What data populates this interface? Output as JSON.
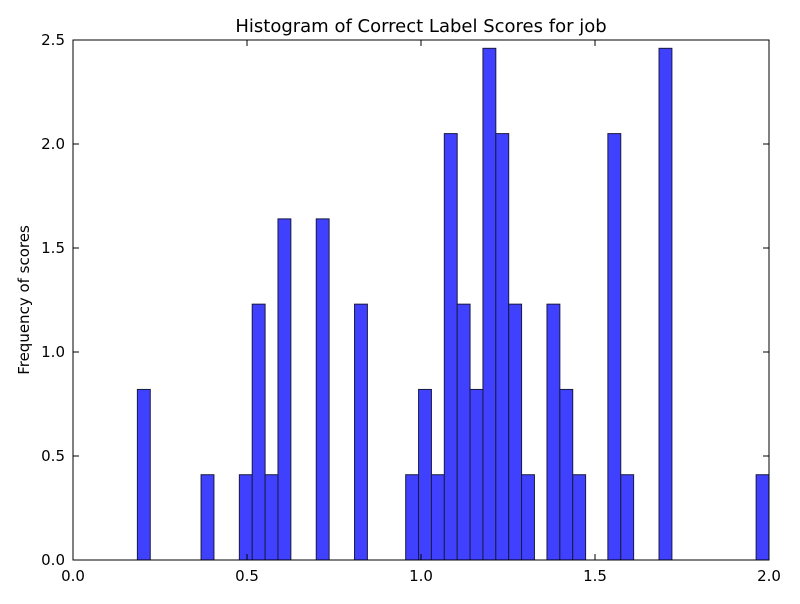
{
  "chart_data": {
    "type": "bar",
    "title": "Histogram of Correct Label Scores for job",
    "xlabel": "",
    "ylabel": "Frequency of scores",
    "xlim": [
      0.0,
      2.0
    ],
    "ylim": [
      0.0,
      2.5
    ],
    "grid": false,
    "bar_color": "#4040ff",
    "edge_color": "#1a1a40",
    "x_ticks": [
      {
        "value": 0.0,
        "label": "0.0"
      },
      {
        "value": 0.5,
        "label": "0.5"
      },
      {
        "value": 1.0,
        "label": "1.0"
      },
      {
        "value": 1.5,
        "label": "1.5"
      },
      {
        "value": 2.0,
        "label": "2.0"
      }
    ],
    "y_ticks": [
      {
        "value": 0.0,
        "label": "0.0"
      },
      {
        "value": 0.5,
        "label": "0.5"
      },
      {
        "value": 1.0,
        "label": "1.0"
      },
      {
        "value": 1.5,
        "label": "1.5"
      },
      {
        "value": 2.0,
        "label": "2.0"
      },
      {
        "value": 2.5,
        "label": "2.5"
      }
    ],
    "bins": [
      {
        "x0": 0.185,
        "x1": 0.222,
        "value": 0.82
      },
      {
        "x0": 0.368,
        "x1": 0.405,
        "value": 0.41
      },
      {
        "x0": 0.478,
        "x1": 0.515,
        "value": 0.41
      },
      {
        "x0": 0.515,
        "x1": 0.552,
        "value": 1.23
      },
      {
        "x0": 0.552,
        "x1": 0.589,
        "value": 0.41
      },
      {
        "x0": 0.589,
        "x1": 0.626,
        "value": 1.64
      },
      {
        "x0": 0.699,
        "x1": 0.736,
        "value": 1.64
      },
      {
        "x0": 0.809,
        "x1": 0.846,
        "value": 1.23
      },
      {
        "x0": 0.956,
        "x1": 0.993,
        "value": 0.41
      },
      {
        "x0": 0.993,
        "x1": 1.03,
        "value": 0.82
      },
      {
        "x0": 1.03,
        "x1": 1.067,
        "value": 0.41
      },
      {
        "x0": 1.067,
        "x1": 1.104,
        "value": 2.05
      },
      {
        "x0": 1.104,
        "x1": 1.141,
        "value": 1.23
      },
      {
        "x0": 1.141,
        "x1": 1.178,
        "value": 0.82
      },
      {
        "x0": 1.178,
        "x1": 1.215,
        "value": 2.46
      },
      {
        "x0": 1.215,
        "x1": 1.252,
        "value": 2.05
      },
      {
        "x0": 1.252,
        "x1": 1.289,
        "value": 1.23
      },
      {
        "x0": 1.289,
        "x1": 1.326,
        "value": 0.41
      },
      {
        "x0": 1.362,
        "x1": 1.399,
        "value": 1.23
      },
      {
        "x0": 1.399,
        "x1": 1.436,
        "value": 0.82
      },
      {
        "x0": 1.436,
        "x1": 1.473,
        "value": 0.41
      },
      {
        "x0": 1.537,
        "x1": 1.574,
        "value": 2.05
      },
      {
        "x0": 1.574,
        "x1": 1.611,
        "value": 0.41
      },
      {
        "x0": 1.684,
        "x1": 1.721,
        "value": 2.46
      },
      {
        "x0": 1.963,
        "x1": 2.0,
        "value": 0.41
      }
    ]
  }
}
